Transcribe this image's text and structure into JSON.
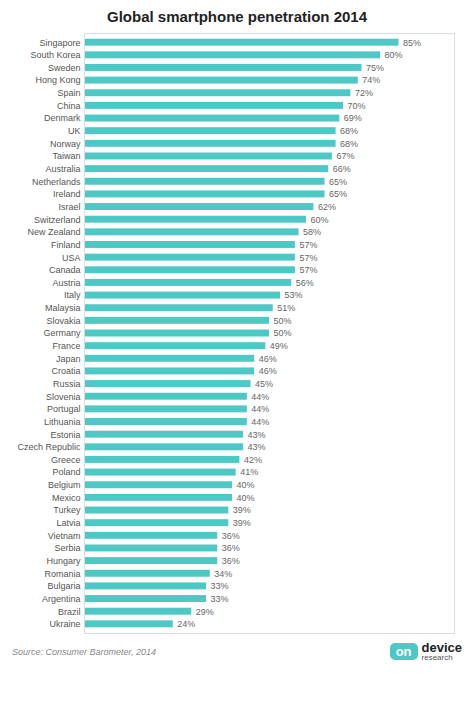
{
  "chart_data": {
    "type": "bar",
    "orientation": "horizontal",
    "title": "Global smartphone penetration 2014",
    "categories": [
      "Singapore",
      "South Korea",
      "Sweden",
      "Hong Kong",
      "Spain",
      "China",
      "Denmark",
      "UK",
      "Norway",
      "Taiwan",
      "Australia",
      "Netherlands",
      "Ireland",
      "Israel",
      "Switzerland",
      "New Zealand",
      "Finland",
      "USA",
      "Canada",
      "Austria",
      "Italy",
      "Malaysia",
      "Slovakia",
      "Germany",
      "France",
      "Japan",
      "Croatia",
      "Russia",
      "Slovenia",
      "Portugal",
      "Lithuania",
      "Estonia",
      "Czech Republic",
      "Greece",
      "Poland",
      "Belgium",
      "Mexico",
      "Turkey",
      "Latvia",
      "Vietnam",
      "Serbia",
      "Hungary",
      "Romania",
      "Bulgaria",
      "Argentina",
      "Brazil",
      "Ukraine"
    ],
    "values": [
      85,
      80,
      75,
      74,
      72,
      70,
      69,
      68,
      68,
      67,
      66,
      65,
      65,
      62,
      60,
      58,
      57,
      57,
      57,
      56,
      53,
      51,
      50,
      50,
      49,
      46,
      46,
      45,
      44,
      44,
      44,
      43,
      43,
      42,
      41,
      40,
      40,
      39,
      39,
      36,
      36,
      36,
      34,
      33,
      33,
      29,
      24
    ],
    "value_labels": [
      "85%",
      "80%",
      "75%",
      "74%",
      "72%",
      "70%",
      "69%",
      "68%",
      "68%",
      "67%",
      "66%",
      "65%",
      "65%",
      "62%",
      "60%",
      "58%",
      "57%",
      "57%",
      "57%",
      "56%",
      "53%",
      "51%",
      "50%",
      "50%",
      "49%",
      "46%",
      "46%",
      "45%",
      "44%",
      "44%",
      "44%",
      "43%",
      "43%",
      "42%",
      "41%",
      "40%",
      "40%",
      "39%",
      "39%",
      "36%",
      "36%",
      "36%",
      "34%",
      "33%",
      "33%",
      "29%",
      "24%"
    ],
    "color": "#4dc8c4",
    "xlim": [
      0,
      100
    ],
    "data_labels": true,
    "tick_labels": "y",
    "grid": false,
    "annotations": [
      "Source: Consumer Barometer, 2014",
      "on",
      "device",
      "research"
    ]
  }
}
